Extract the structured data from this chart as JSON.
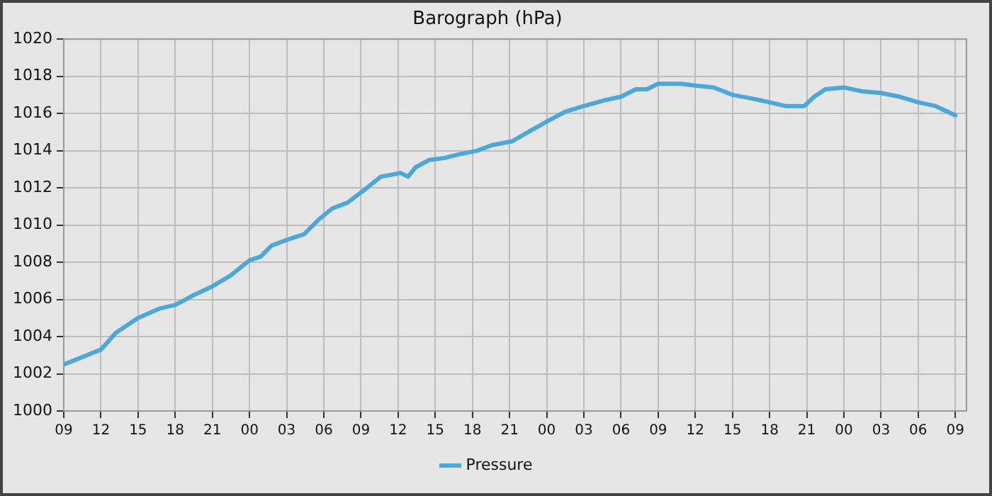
{
  "chart_data": {
    "type": "line",
    "title": "Barograph (hPa)",
    "x": [
      9,
      12,
      13.2,
      15,
      16.7,
      18,
      19.4,
      21,
      22.5,
      24,
      24.9,
      25.8,
      27,
      28.4,
      29.6,
      30.7,
      31.9,
      33.1,
      34.6,
      36.2,
      36.8,
      37.4,
      38.5,
      39.7,
      40.9,
      42.4,
      43.6,
      45.2,
      46.5,
      48.1,
      49.5,
      51,
      52.6,
      54,
      55.2,
      56.1,
      57,
      58.8,
      60,
      61.5,
      63,
      64.6,
      66,
      67.3,
      68.8,
      69.6,
      70.5,
      72,
      73.4,
      75,
      76.5,
      78,
      79.4,
      81
    ],
    "series": [
      {
        "name": "Pressure",
        "color": "#4ba8d8",
        "values": [
          1002.5,
          1003.3,
          1004.2,
          1005.0,
          1005.5,
          1005.7,
          1006.2,
          1006.7,
          1007.3,
          1008.1,
          1008.3,
          1008.9,
          1009.2,
          1009.5,
          1010.3,
          1010.9,
          1011.2,
          1011.8,
          1012.6,
          1012.8,
          1012.6,
          1013.1,
          1013.5,
          1013.6,
          1013.8,
          1014.0,
          1014.3,
          1014.5,
          1015.0,
          1015.6,
          1016.1,
          1016.4,
          1016.7,
          1016.9,
          1017.3,
          1017.3,
          1017.6,
          1017.6,
          1017.5,
          1017.4,
          1017.0,
          1016.8,
          1016.6,
          1016.4,
          1016.4,
          1016.9,
          1017.3,
          1017.4,
          1017.2,
          1017.1,
          1016.9,
          1016.6,
          1016.4,
          1015.9
        ]
      }
    ],
    "xlim": [
      9,
      81.9
    ],
    "xticks": [
      {
        "value": 9,
        "label": "09"
      },
      {
        "value": 12,
        "label": "12"
      },
      {
        "value": 15,
        "label": "15"
      },
      {
        "value": 18,
        "label": "18"
      },
      {
        "value": 21,
        "label": "21"
      },
      {
        "value": 24,
        "label": "00"
      },
      {
        "value": 27,
        "label": "03"
      },
      {
        "value": 30,
        "label": "06"
      },
      {
        "value": 33,
        "label": "09"
      },
      {
        "value": 36,
        "label": "12"
      },
      {
        "value": 39,
        "label": "15"
      },
      {
        "value": 42,
        "label": "18"
      },
      {
        "value": 45,
        "label": "21"
      },
      {
        "value": 48,
        "label": "00"
      },
      {
        "value": 51,
        "label": "03"
      },
      {
        "value": 54,
        "label": "06"
      },
      {
        "value": 57,
        "label": "09"
      },
      {
        "value": 60,
        "label": "12"
      },
      {
        "value": 63,
        "label": "15"
      },
      {
        "value": 66,
        "label": "18"
      },
      {
        "value": 69,
        "label": "21"
      },
      {
        "value": 72,
        "label": "00"
      },
      {
        "value": 75,
        "label": "03"
      },
      {
        "value": 78,
        "label": "06"
      },
      {
        "value": 81,
        "label": "09"
      }
    ],
    "ylim": [
      1000,
      1020
    ],
    "yticks": [
      1000,
      1002,
      1004,
      1006,
      1008,
      1010,
      1012,
      1014,
      1016,
      1018,
      1020
    ],
    "grid": true,
    "legend": "bottom",
    "marker": "none",
    "line_style": "solid"
  }
}
